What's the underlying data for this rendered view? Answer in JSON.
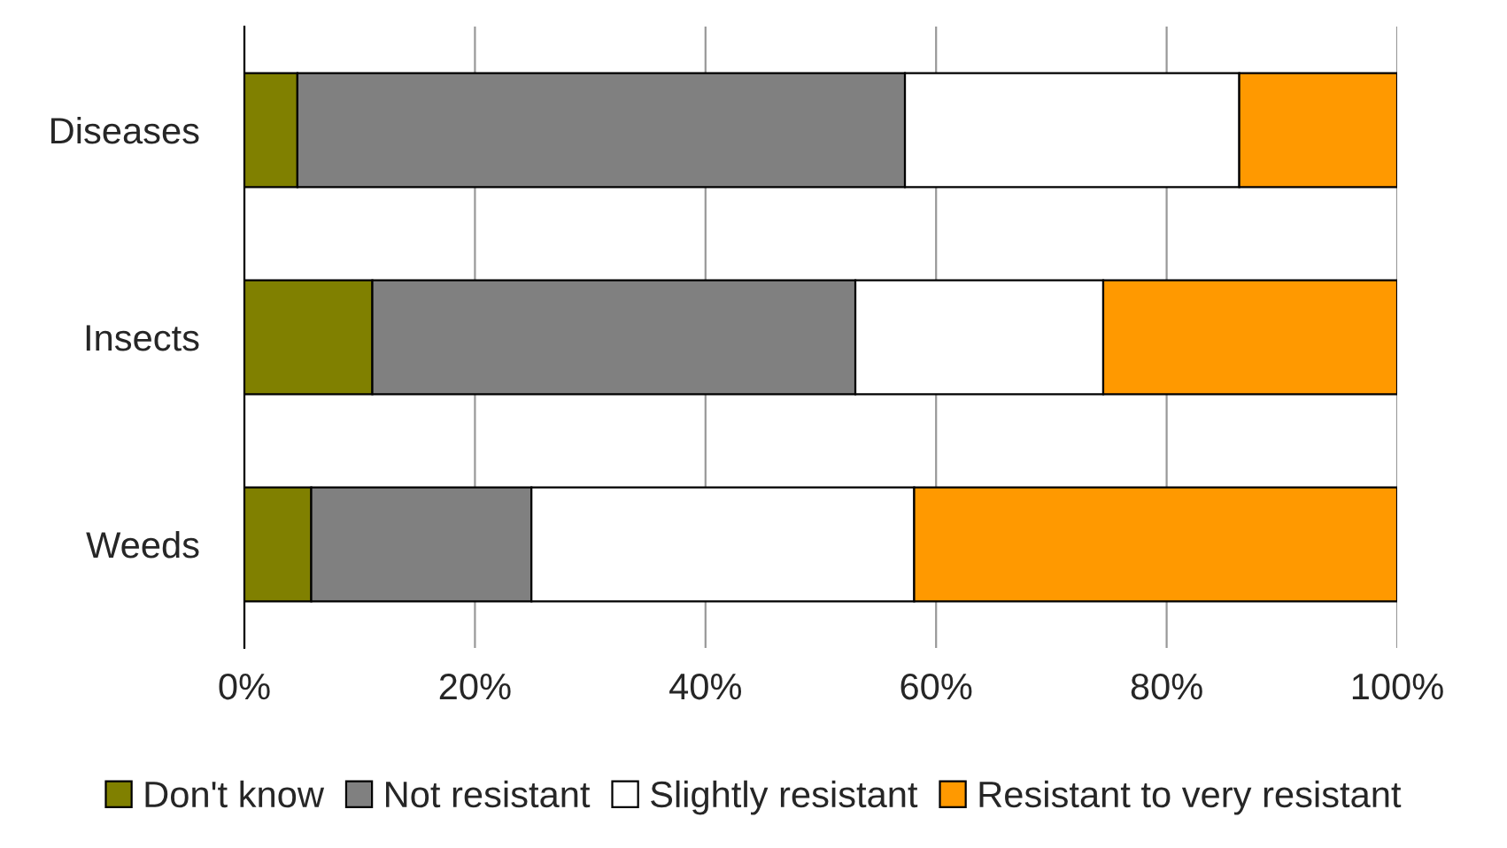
{
  "chart_data": {
    "type": "bar",
    "orientation": "horizontal",
    "stacked": true,
    "categories": [
      "Diseases",
      "Insects",
      "Weeds"
    ],
    "series": [
      {
        "name": "Don't know",
        "color": "#808000",
        "values": [
          4.6,
          11.1,
          5.8
        ]
      },
      {
        "name": "Not resistant",
        "color": "#808080",
        "values": [
          52.7,
          41.9,
          19.1
        ]
      },
      {
        "name": "Slightly resistant",
        "color": "#ffffff",
        "values": [
          29.0,
          21.5,
          33.2
        ]
      },
      {
        "name": "Resistant to very resistant",
        "color": "#ff9900",
        "values": [
          13.7,
          25.5,
          41.9
        ]
      }
    ],
    "xlim": [
      0,
      100
    ],
    "xticks": [
      {
        "value": 0,
        "label": "0%"
      },
      {
        "value": 20,
        "label": "20%"
      },
      {
        "value": 40,
        "label": "40%"
      },
      {
        "value": 60,
        "label": "60%"
      },
      {
        "value": 80,
        "label": "80%"
      },
      {
        "value": 100,
        "label": "100%"
      }
    ],
    "grid": "x",
    "legend": "bottom"
  }
}
